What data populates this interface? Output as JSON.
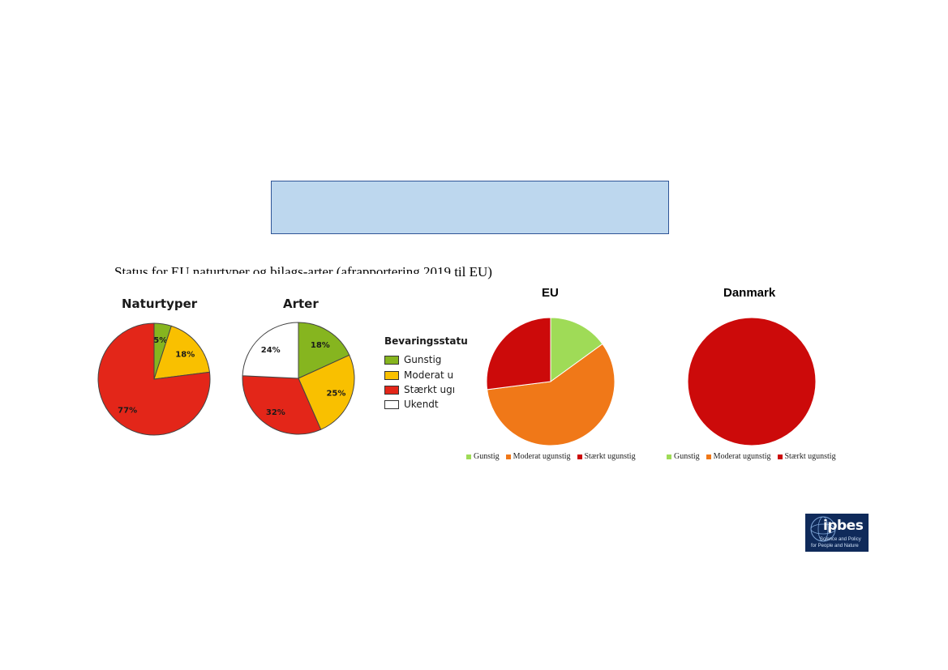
{
  "title": "Status for EU naturtyper og bilags-arter (afrapportering 2019 til EU)",
  "chart_data": [
    {
      "type": "pie",
      "title": "Naturtyper",
      "categories": [
        "Gunstig",
        "Moderat u",
        "Stærkt ugı"
      ],
      "values": [
        5,
        18,
        77
      ],
      "labels": [
        "5%",
        "18%",
        "77%"
      ],
      "colors": [
        "#86b51f",
        "#f9c000",
        "#e32619"
      ]
    },
    {
      "type": "pie",
      "title": "Arter",
      "categories": [
        "Gunstig",
        "Moderat u",
        "Stærkt ugı",
        "Ukendt"
      ],
      "values": [
        18,
        25,
        32,
        24
      ],
      "labels": [
        "18%",
        "25%",
        "32%",
        "24%"
      ],
      "colors": [
        "#86b51f",
        "#f9c000",
        "#e32619",
        "#ffffff"
      ]
    },
    {
      "type": "pie",
      "title": "EU",
      "categories": [
        "Gunstig",
        "Moderat ugunstig",
        "Stærkt ugunstig"
      ],
      "values": [
        15,
        58,
        27
      ],
      "colors": [
        "#9fdb57",
        "#f07818",
        "#cc0a0a"
      ]
    },
    {
      "type": "pie",
      "title": "Danmark",
      "categories": [
        "Gunstig",
        "Moderat ugunstig",
        "Stærkt ugunstig"
      ],
      "values": [
        0,
        0,
        100
      ],
      "colors": [
        "#9fdb57",
        "#f07818",
        "#cc0a0a"
      ]
    }
  ],
  "legend": {
    "title": "Bevaringsstatu",
    "items": [
      {
        "label": "Gunstig",
        "color": "#86b51f"
      },
      {
        "label": "Moderat u",
        "color": "#f9c000"
      },
      {
        "label": "Stærkt ugı",
        "color": "#e32619"
      },
      {
        "label": "Ukendt",
        "color": "#ffffff"
      }
    ]
  },
  "small_legend": {
    "items": [
      {
        "label": "Gunstig",
        "color": "#9fdb57"
      },
      {
        "label": "Moderat ugunstig",
        "color": "#f07818"
      },
      {
        "label": "Stærkt ugunstig",
        "color": "#cc0a0a"
      }
    ]
  },
  "logo": {
    "word": "ipbes",
    "line1": "Science and Policy",
    "line2": "for People and Nature"
  }
}
